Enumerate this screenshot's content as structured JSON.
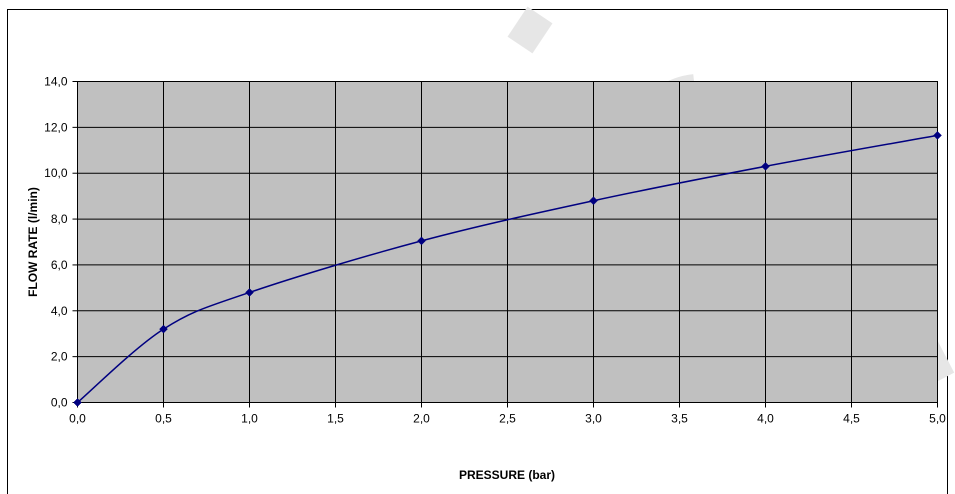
{
  "chart_data": {
    "type": "line",
    "title": "",
    "xlabel": "PRESSURE (bar)",
    "ylabel": "FLOW RATE (l/min)",
    "xlim": [
      0,
      5
    ],
    "ylim": [
      0,
      14
    ],
    "xticks": [
      "0,0",
      "0,5",
      "1,0",
      "1,5",
      "2,0",
      "2,5",
      "3,0",
      "3,5",
      "4,0",
      "4,5",
      "5,0"
    ],
    "yticks": [
      "0,0",
      "2,0",
      "4,0",
      "6,0",
      "8,0",
      "10,0",
      "12,0",
      "14,0"
    ],
    "grid": true,
    "legend": "none",
    "series": [
      {
        "x": [
          0,
          0.5,
          1,
          2,
          3,
          4,
          5
        ],
        "y": [
          0,
          3.2,
          4.8,
          7.05,
          8.8,
          10.3,
          11.65
        ]
      }
    ],
    "colors": {
      "plot_background": "#c0c0c0",
      "grid": "#000000",
      "line": "#000080",
      "marker": "#000080",
      "watermark": "#e6e6e6"
    }
  }
}
